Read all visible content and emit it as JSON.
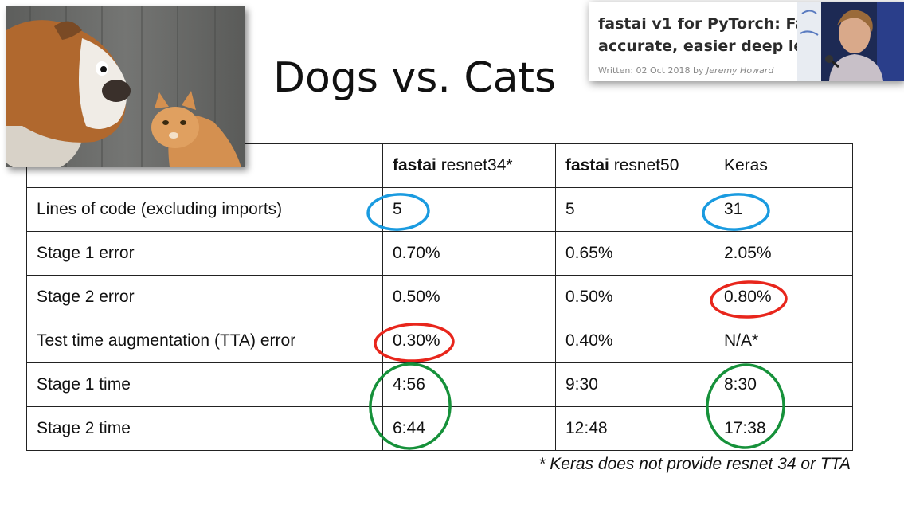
{
  "slide": {
    "title": "Dogs vs. Cats",
    "footnote": "* Keras does not provide resnet 34 or TTA"
  },
  "article_card": {
    "title": "fastai v1 for PyTorch: Fa\naccurate, easier deep le",
    "meta_prefix": "Written: 02 Oct 2018 by ",
    "author": "Jeremy Howard"
  },
  "table": {
    "headers": [
      {
        "bold": "",
        "rest": ""
      },
      {
        "bold": "fastai",
        "rest": " resnet34*"
      },
      {
        "bold": "fastai",
        "rest": " resnet50"
      },
      {
        "bold": "",
        "rest": "Keras"
      }
    ],
    "rows": [
      {
        "label": "Lines of code (excluding imports)",
        "cells": [
          "5",
          "5",
          "31"
        ]
      },
      {
        "label": "Stage 1 error",
        "cells": [
          "0.70%",
          "0.65%",
          "2.05%"
        ]
      },
      {
        "label": "Stage 2 error",
        "cells": [
          "0.50%",
          "0.50%",
          "0.80%"
        ]
      },
      {
        "label": "Test time augmentation (TTA) error",
        "cells": [
          "0.30%",
          "0.40%",
          "N/A*"
        ]
      },
      {
        "label": "Stage 1 time",
        "cells": [
          "4:56",
          "9:30",
          "8:30"
        ]
      },
      {
        "label": "Stage 2 time",
        "cells": [
          "6:44",
          "12:48",
          "17:38"
        ]
      }
    ]
  },
  "annotation_colors": {
    "blue": "#1a9be0",
    "red": "#e8261c",
    "green": "#16913a"
  }
}
